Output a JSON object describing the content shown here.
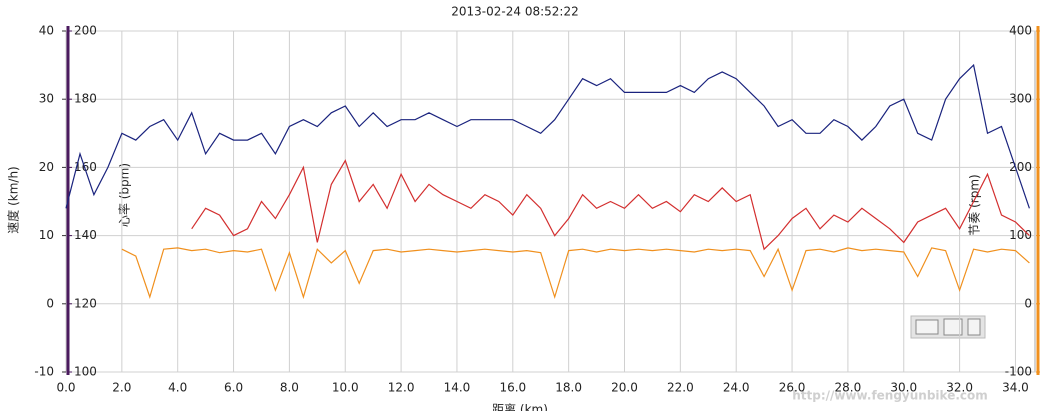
{
  "chart_data": {
    "type": "line",
    "title": "2013-02-24 08:52:22",
    "x_label": "距离 (km)",
    "y_label": "速度 (km/h)",
    "y2_label": "心率 (bpm)",
    "y3_label": "节奏 (rpm)",
    "watermark": "http://www.fengyunbike.com",
    "xlim": [
      0,
      34.7
    ],
    "xticks": [
      {
        "value": 0,
        "label": "0.0"
      },
      {
        "value": 2,
        "label": "2.0"
      },
      {
        "value": 4,
        "label": "4.0"
      },
      {
        "value": 6,
        "label": "6.0"
      },
      {
        "value": 8,
        "label": "8.0"
      },
      {
        "value": 10,
        "label": "10.0"
      },
      {
        "value": 12,
        "label": "12.0"
      },
      {
        "value": 14,
        "label": "14.0"
      },
      {
        "value": 16,
        "label": "16.0"
      },
      {
        "value": 18,
        "label": "18.0"
      },
      {
        "value": 20,
        "label": "20.0"
      },
      {
        "value": 22,
        "label": "22.0"
      },
      {
        "value": 24,
        "label": "24.0"
      },
      {
        "value": 26,
        "label": "26.0"
      },
      {
        "value": 28,
        "label": "28.0"
      },
      {
        "value": 30,
        "label": "30.0"
      },
      {
        "value": 32,
        "label": "32.0"
      },
      {
        "value": 34,
        "label": "34.0"
      }
    ],
    "ylim": [
      -10,
      40
    ],
    "yticks": [
      -10,
      0,
      10,
      20,
      30,
      40
    ],
    "y2lim": [
      100,
      200
    ],
    "y2ticks": [
      100,
      120,
      140,
      160,
      180,
      200
    ],
    "y3lim": [
      -100,
      400
    ],
    "y3ticks": [
      -100,
      0,
      100,
      200,
      300,
      400
    ],
    "grid": true,
    "x": [
      0,
      0.5,
      1,
      1.5,
      2,
      2.5,
      3,
      3.5,
      4,
      4.5,
      5,
      5.5,
      6,
      6.5,
      7,
      7.5,
      8,
      8.5,
      9,
      9.5,
      10,
      10.5,
      11,
      11.5,
      12,
      12.5,
      13,
      13.5,
      14,
      14.5,
      15,
      15.5,
      16,
      16.5,
      17,
      17.5,
      18,
      18.5,
      19,
      19.5,
      20,
      20.5,
      21,
      21.5,
      22,
      22.5,
      23,
      23.5,
      24,
      24.5,
      25,
      25.5,
      26,
      26.5,
      27,
      27.5,
      28,
      28.5,
      29,
      29.5,
      30,
      30.5,
      31,
      31.5,
      32,
      32.5,
      33,
      33.5,
      34,
      34.5
    ],
    "series": [
      {
        "name": "速度",
        "color": "#1a237e",
        "axis": "y",
        "values": [
          14,
          22,
          16,
          20,
          25,
          24,
          26,
          27,
          24,
          28,
          22,
          25,
          24,
          24,
          25,
          22,
          26,
          27,
          26,
          28,
          29,
          26,
          28,
          26,
          27,
          27,
          28,
          27,
          26,
          27,
          27,
          27,
          27,
          26,
          25,
          27,
          30,
          33,
          32,
          33,
          31,
          31,
          31,
          31,
          32,
          31,
          33,
          34,
          33,
          31,
          29,
          26,
          27,
          25,
          25,
          27,
          26,
          24,
          26,
          29,
          30,
          25,
          24,
          30,
          33,
          35,
          25,
          26,
          20,
          14
        ]
      },
      {
        "name": "心率",
        "color": "#d32f2f",
        "axis": "y2",
        "values": [
          null,
          null,
          null,
          null,
          null,
          null,
          null,
          null,
          null,
          142,
          148,
          146,
          140,
          142,
          150,
          145,
          152,
          160,
          138,
          155,
          162,
          150,
          155,
          148,
          158,
          150,
          155,
          152,
          150,
          148,
          152,
          150,
          146,
          152,
          148,
          140,
          145,
          152,
          148,
          150,
          148,
          152,
          148,
          150,
          147,
          152,
          150,
          154,
          150,
          152,
          136,
          140,
          145,
          148,
          142,
          146,
          144,
          148,
          145,
          142,
          138,
          144,
          146,
          148,
          142,
          150,
          158,
          146,
          144,
          140
        ]
      },
      {
        "name": "节奏",
        "color": "#f0901e",
        "axis": "y3",
        "values": [
          null,
          null,
          null,
          null,
          80,
          70,
          10,
          80,
          82,
          78,
          80,
          75,
          78,
          76,
          80,
          20,
          75,
          10,
          80,
          60,
          78,
          30,
          78,
          80,
          76,
          78,
          80,
          78,
          76,
          78,
          80,
          78,
          76,
          78,
          75,
          10,
          78,
          80,
          76,
          80,
          78,
          80,
          78,
          80,
          78,
          76,
          80,
          78,
          80,
          78,
          40,
          80,
          20,
          78,
          80,
          76,
          82,
          78,
          80,
          78,
          76,
          40,
          82,
          78,
          20,
          80,
          76,
          80,
          78,
          60
        ]
      }
    ]
  }
}
